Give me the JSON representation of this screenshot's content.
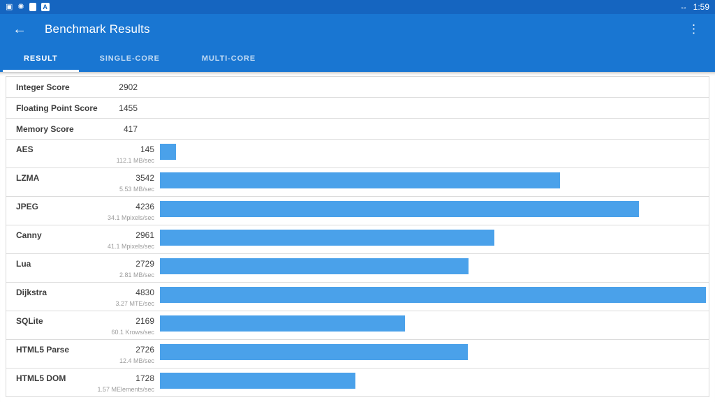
{
  "status_bar": {
    "time": "1:59",
    "icons_left": [
      "screenshot-icon",
      "settings-icon",
      "sim-card-icon",
      "letter-a-icon"
    ],
    "icons_right": [
      "usb-debug-icon"
    ]
  },
  "app_bar": {
    "title": "Benchmark Results"
  },
  "tabs": [
    {
      "label": "RESULT",
      "active": true
    },
    {
      "label": "SINGLE-CORE",
      "active": false
    },
    {
      "label": "MULTI-CORE",
      "active": false
    }
  ],
  "scores": [
    {
      "label": "Integer Score",
      "value": "2902"
    },
    {
      "label": "Floating Point Score",
      "value": "1455"
    },
    {
      "label": "Memory Score",
      "value": "417"
    }
  ],
  "benchmarks": [
    {
      "name": "AES",
      "score": 145,
      "rate": "112.1 MB/sec"
    },
    {
      "name": "LZMA",
      "score": 3542,
      "rate": "5.53 MB/sec"
    },
    {
      "name": "JPEG",
      "score": 4236,
      "rate": "34.1 Mpixels/sec"
    },
    {
      "name": "Canny",
      "score": 2961,
      "rate": "41.1 Mpixels/sec"
    },
    {
      "name": "Lua",
      "score": 2729,
      "rate": "2.81 MB/sec"
    },
    {
      "name": "Dijkstra",
      "score": 4830,
      "rate": "3.27 MTE/sec"
    },
    {
      "name": "SQLite",
      "score": 2169,
      "rate": "60.1 Krows/sec"
    },
    {
      "name": "HTML5 Parse",
      "score": 2726,
      "rate": "12.4 MB/sec"
    },
    {
      "name": "HTML5 DOM",
      "score": 1728,
      "rate": "1.57 MElements/sec"
    }
  ],
  "colors": {
    "bar": "#4aa1ea",
    "app_bar": "#1976d2",
    "status_bar": "#1565c0"
  }
}
